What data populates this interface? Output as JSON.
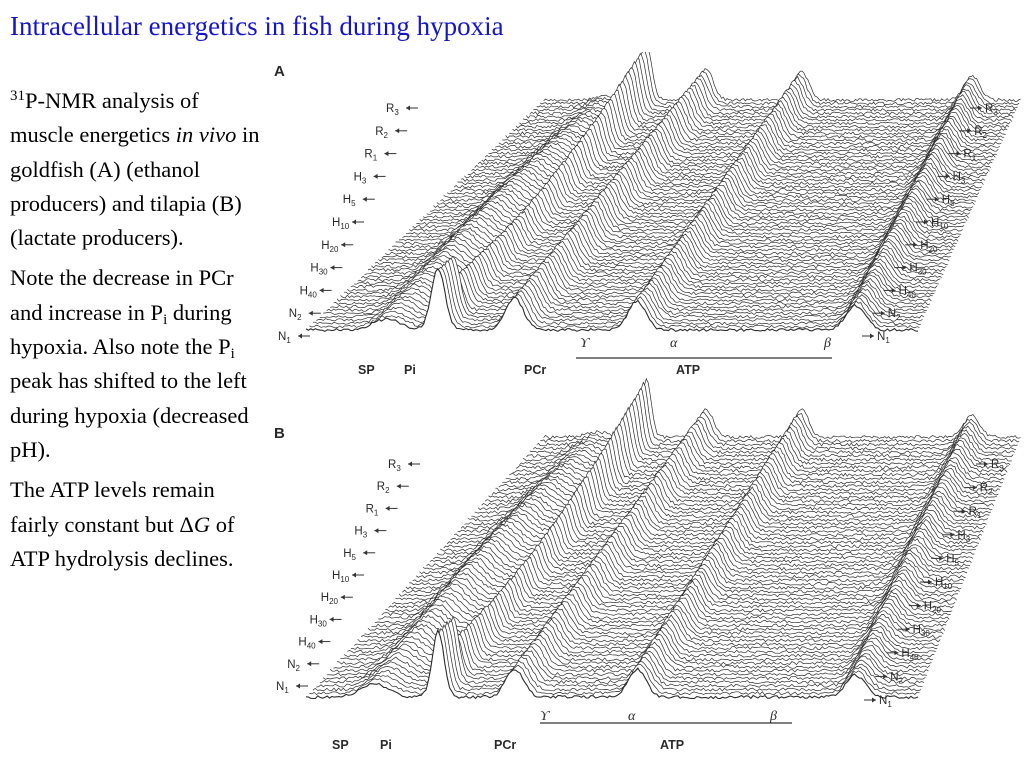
{
  "title": "Intracellular energetics in fish during hypoxia",
  "sidebar": {
    "p1": {
      "sup": "31",
      "t1": "P-NMR analysis of muscle energetics ",
      "em": "in vivo",
      "t2": " in goldfish (A) (ethanol producers) and tilapia (B) (lactate producers)."
    },
    "p2": {
      "t1": "Note the decrease in PCr and increase in P",
      "sub1": "i",
      "t2": " during hypoxia.  Also note the P",
      "sub2": "i",
      "t3": " peak has shifted to the left during hypoxia (decreased pH)."
    },
    "p3": {
      "t1": "The ATP levels remain fairly constant but ",
      "delta": "Δ",
      "g": "G",
      "t2": " of ATP hydrolysis declines."
    }
  },
  "figure": {
    "panels": [
      {
        "letter": "A",
        "state_labels": [
          {
            "base": "R",
            "sub": "3"
          },
          {
            "base": "R",
            "sub": "2"
          },
          {
            "base": "R",
            "sub": "1"
          },
          {
            "base": "H",
            "sub": "3"
          },
          {
            "base": "H",
            "sub": "5"
          },
          {
            "base": "H",
            "sub": "10"
          },
          {
            "base": "H",
            "sub": "20"
          },
          {
            "base": "H",
            "sub": "30"
          },
          {
            "base": "H",
            "sub": "40"
          },
          {
            "base": "N",
            "sub": "2"
          },
          {
            "base": "N",
            "sub": "1"
          }
        ],
        "peaks": {
          "gamma": "ϒ",
          "alpha": "α",
          "beta": "β",
          "sp": "SP",
          "pi": "Pi",
          "pcr": "PCr",
          "atp": "ATP"
        }
      },
      {
        "letter": "B",
        "state_labels": [
          {
            "base": "R",
            "sub": "3"
          },
          {
            "base": "R",
            "sub": "2"
          },
          {
            "base": "R",
            "sub": "1"
          },
          {
            "base": "H",
            "sub": "3"
          },
          {
            "base": "H",
            "sub": "5"
          },
          {
            "base": "H",
            "sub": "10"
          },
          {
            "base": "H",
            "sub": "20"
          },
          {
            "base": "H",
            "sub": "30"
          },
          {
            "base": "H",
            "sub": "40"
          },
          {
            "base": "N",
            "sub": "2"
          },
          {
            "base": "N",
            "sub": "1"
          }
        ],
        "peaks": {
          "gamma": "ϒ",
          "alpha": "α",
          "beta": "β",
          "sp": "SP",
          "pi": "Pi",
          "pcr": "PCr",
          "atp": "ATP"
        }
      }
    ]
  }
}
